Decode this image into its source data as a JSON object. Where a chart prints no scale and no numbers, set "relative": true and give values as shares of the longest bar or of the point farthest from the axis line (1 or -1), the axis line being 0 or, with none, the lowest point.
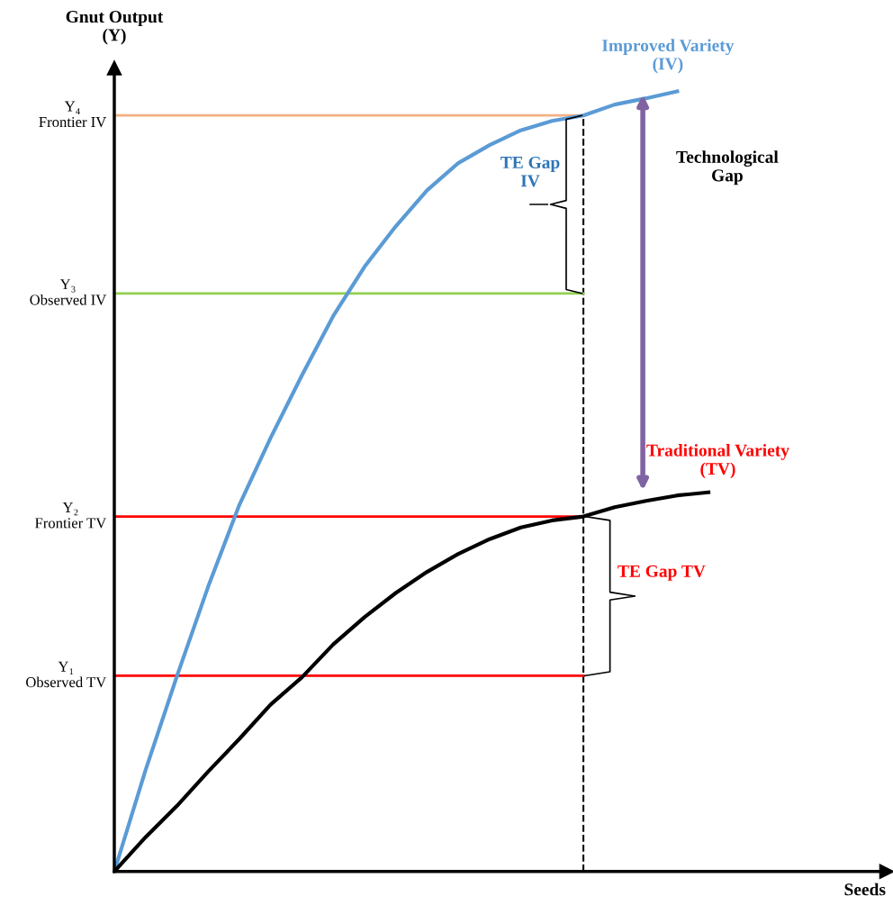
{
  "chart_data": {
    "type": "line",
    "relative": true,
    "ylabel": "Gnut Output\n(Y)",
    "categories": [
      null,
      null,
      null,
      null,
      null,
      null,
      null,
      null,
      null,
      null,
      null,
      null,
      null,
      null,
      null,
      null,
      null,
      null,
      null,
      null
    ],
    "series": [
      {
        "name": "Improved Variety\n(IV)",
        "color": "#5b9bd5",
        "values": [
          0,
          0.13,
          0.25,
          0.365,
          0.47,
          0.556,
          0.636,
          0.712,
          0.775,
          0.827,
          0.873,
          0.908,
          0.931,
          0.95,
          0.962,
          0.969,
          0.983,
          0.991,
          1,
          null
        ]
      },
      {
        "color": "#000000",
        "values": [
          0,
          0.044,
          0.084,
          0.128,
          0.17,
          0.214,
          0.249,
          0.291,
          0.326,
          0.357,
          0.384,
          0.407,
          0.426,
          0.441,
          0.45,
          0.455,
          0.467,
          0.475,
          0.482,
          0.486
        ]
      }
    ],
    "ref_lines": [
      {
        "axis": "y",
        "value": 0.969,
        "label": "Y₄\nFrontier IV",
        "color": "#f4b183"
      },
      {
        "axis": "y",
        "value": 0.741,
        "label": "Y₃\nObserved IV",
        "color": "#92d050"
      },
      {
        "axis": "y",
        "value": 0.455,
        "label": "Y₂\nFrontier TV",
        "color": "#ff0000"
      },
      {
        "axis": "y",
        "value": 0.251,
        "label": "Y₁\nObserved TV",
        "color": "#ff0000"
      }
    ],
    "annotations": [
      "TE Gap\nIV",
      "Technological\nGap",
      "TE Gap TV",
      "Traditional Variety\n(TV)",
      "Seeds"
    ],
    "legend": false,
    "marker": "none",
    "line_style": "solid"
  }
}
